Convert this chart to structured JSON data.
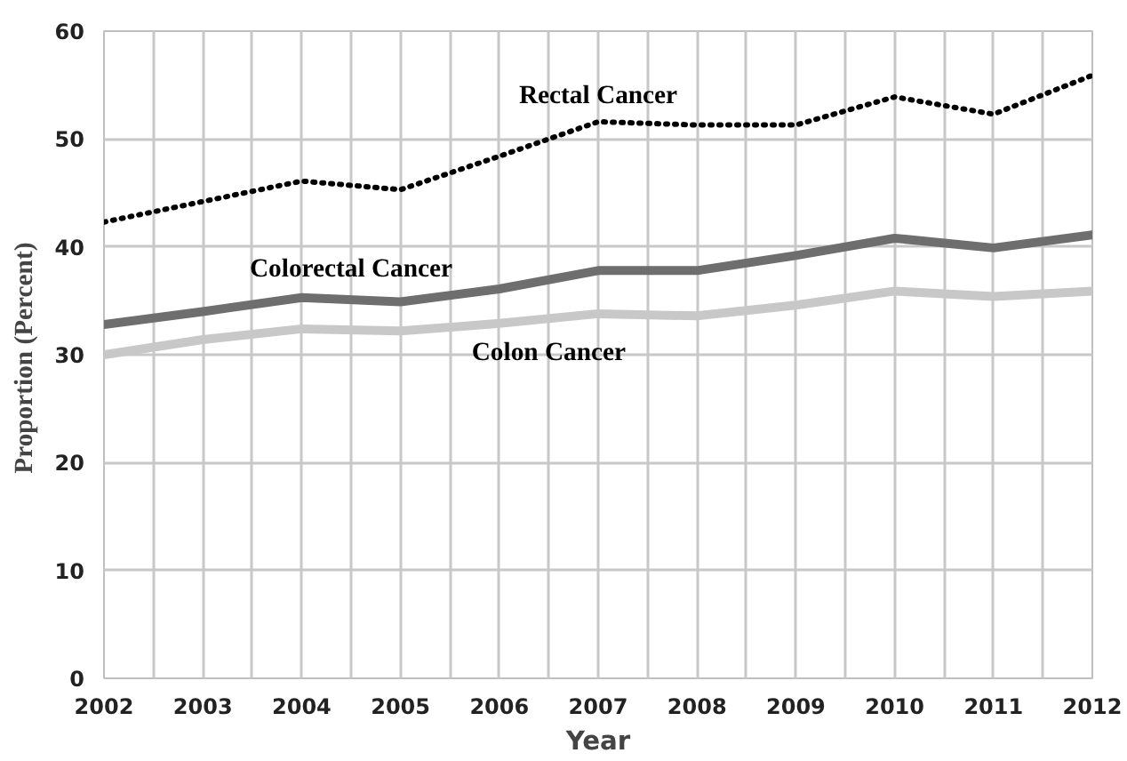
{
  "chart_data": {
    "type": "line",
    "xlabel": "Year",
    "ylabel": "Proportion  (Percent)",
    "x": [
      2002,
      2003,
      2004,
      2005,
      2006,
      2007,
      2008,
      2009,
      2010,
      2011,
      2012
    ],
    "xlim": [
      2002,
      2012
    ],
    "xticks": [
      2002,
      2003,
      2004,
      2005,
      2006,
      2007,
      2008,
      2009,
      2010,
      2011,
      2012
    ],
    "ylim": [
      0,
      60
    ],
    "yticks": [
      0,
      10,
      20,
      30,
      40,
      50,
      60
    ],
    "grid": true,
    "marker": "none",
    "series": [
      {
        "name": "Rectal Cancer",
        "color": "#000000",
        "line_style": "dotted",
        "values": [
          42.3,
          44.2,
          46.1,
          45.3,
          48.4,
          51.6,
          51.3,
          51.3,
          53.9,
          52.3,
          55.9
        ]
      },
      {
        "name": "Colorectal Cancer",
        "color": "#6e6e6e",
        "line_style": "solid",
        "values": [
          32.8,
          34.0,
          35.3,
          34.9,
          36.1,
          37.8,
          37.8,
          39.2,
          40.8,
          39.9,
          41.1
        ]
      },
      {
        "name": "Colon Cancer",
        "color": "#c8c8c8",
        "line_style": "solid",
        "values": [
          30.0,
          31.4,
          32.4,
          32.2,
          32.9,
          33.8,
          33.6,
          34.6,
          35.9,
          35.4,
          35.9
        ]
      }
    ]
  }
}
